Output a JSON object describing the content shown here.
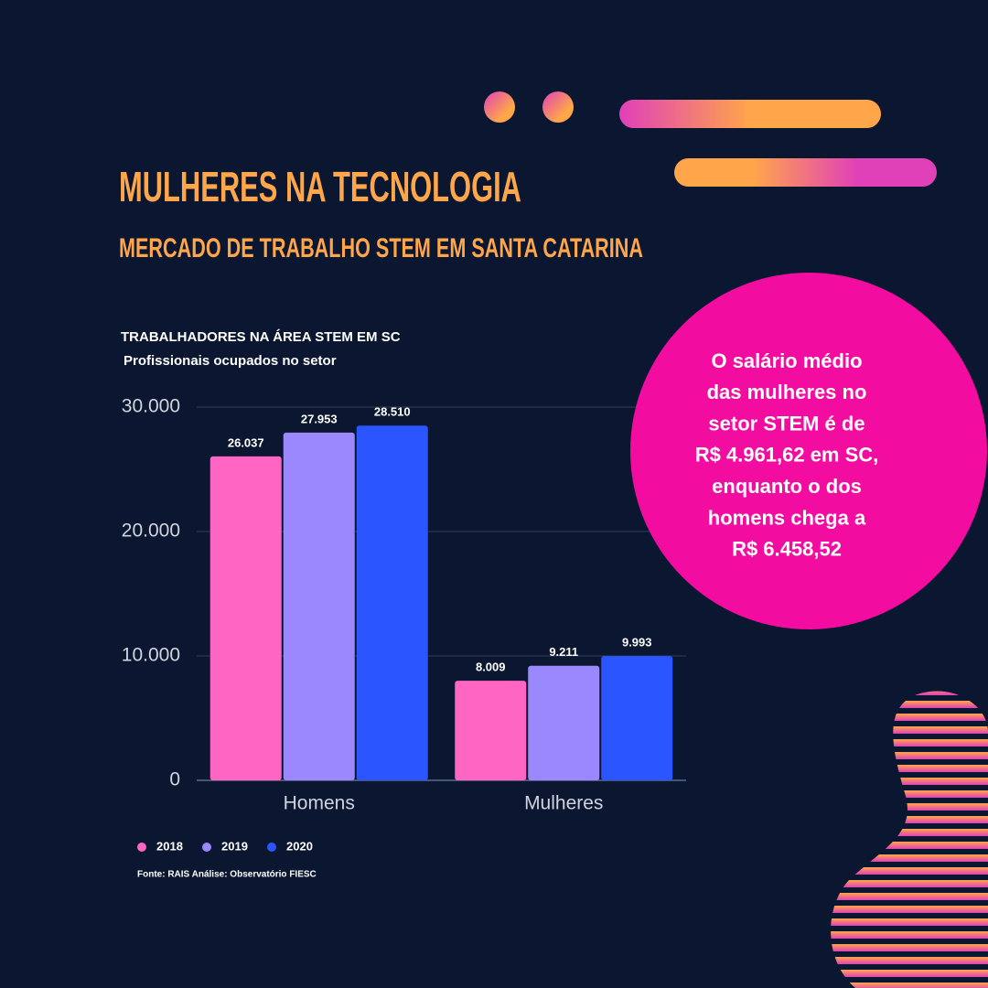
{
  "header": {
    "title": "MULHERES NA TECNOLOGIA",
    "subtitle": "MERCADO DE TRABALHO STEM EM SANTA CATARINA"
  },
  "chart_data": {
    "type": "bar",
    "title": "TRABALHADORES NA ÁREA STEM EM SC",
    "subtitle": "Profissionais ocupados no setor",
    "categories": [
      "Homens",
      "Mulheres"
    ],
    "series": [
      {
        "name": "2018",
        "color": "#ff66c4",
        "values": [
          26037,
          8009
        ],
        "value_labels": [
          "26.037",
          "8.009"
        ]
      },
      {
        "name": "2019",
        "color": "#9b88ff",
        "values": [
          27953,
          9211
        ],
        "value_labels": [
          "27.953",
          "9.211"
        ]
      },
      {
        "name": "2020",
        "color": "#2b56ff",
        "values": [
          28510,
          9993
        ],
        "value_labels": [
          "28.510",
          "9.993"
        ]
      }
    ],
    "ylim": [
      0,
      30000
    ],
    "yticks": [
      0,
      {
        "value": 10000,
        "label": "10.000"
      },
      {
        "value": 20000,
        "label": "20.000"
      },
      {
        "value": 30000,
        "label": "30.000"
      }
    ],
    "grid": true,
    "source": "Fonte: RAIS Análise: Observatório FIESC"
  },
  "callout": [
    "O salário médio",
    "das mulheres no",
    "setor STEM é de",
    "R$ 4.961,62 em SC,",
    "enquanto o dos",
    "homens chega a",
    "R$ 6.458,52"
  ]
}
